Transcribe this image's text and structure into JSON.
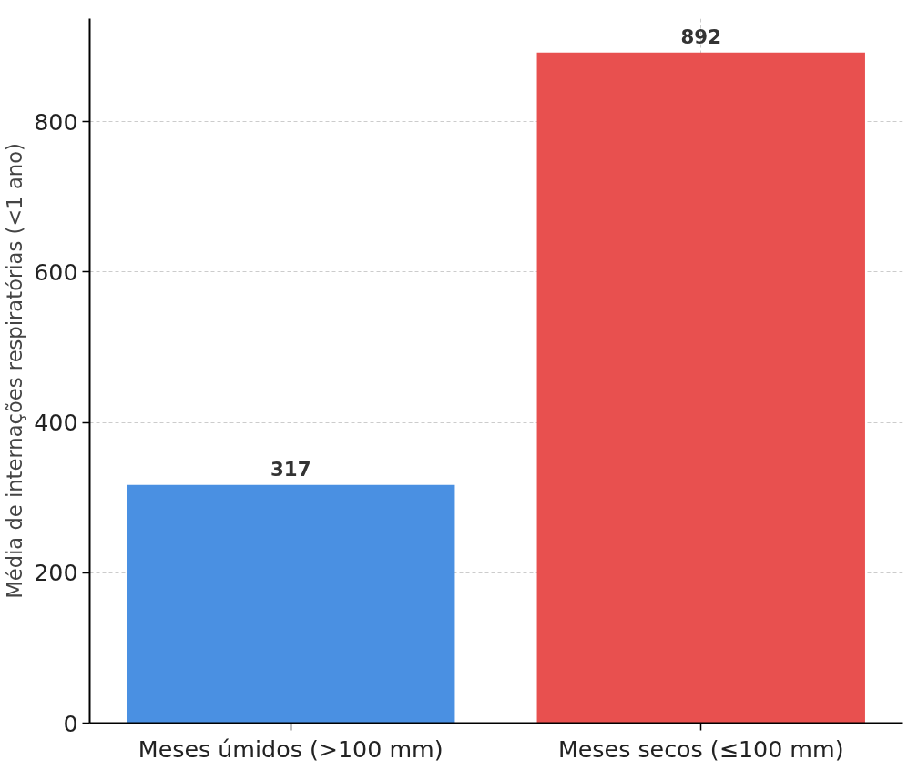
{
  "chart_data": {
    "type": "bar",
    "categories": [
      "Meses úmidos (>100 mm)",
      "Meses secos (≤100 mm)"
    ],
    "values": [
      317,
      892
    ],
    "colors": [
      "#4a90e2",
      "#e8504f"
    ],
    "ylabel": "Média de internações respiratórias (<1 ano)",
    "ylim": [
      0,
      937
    ],
    "yticks": [
      0,
      200,
      400,
      600,
      800
    ],
    "grid": true,
    "data_labels": true
  }
}
